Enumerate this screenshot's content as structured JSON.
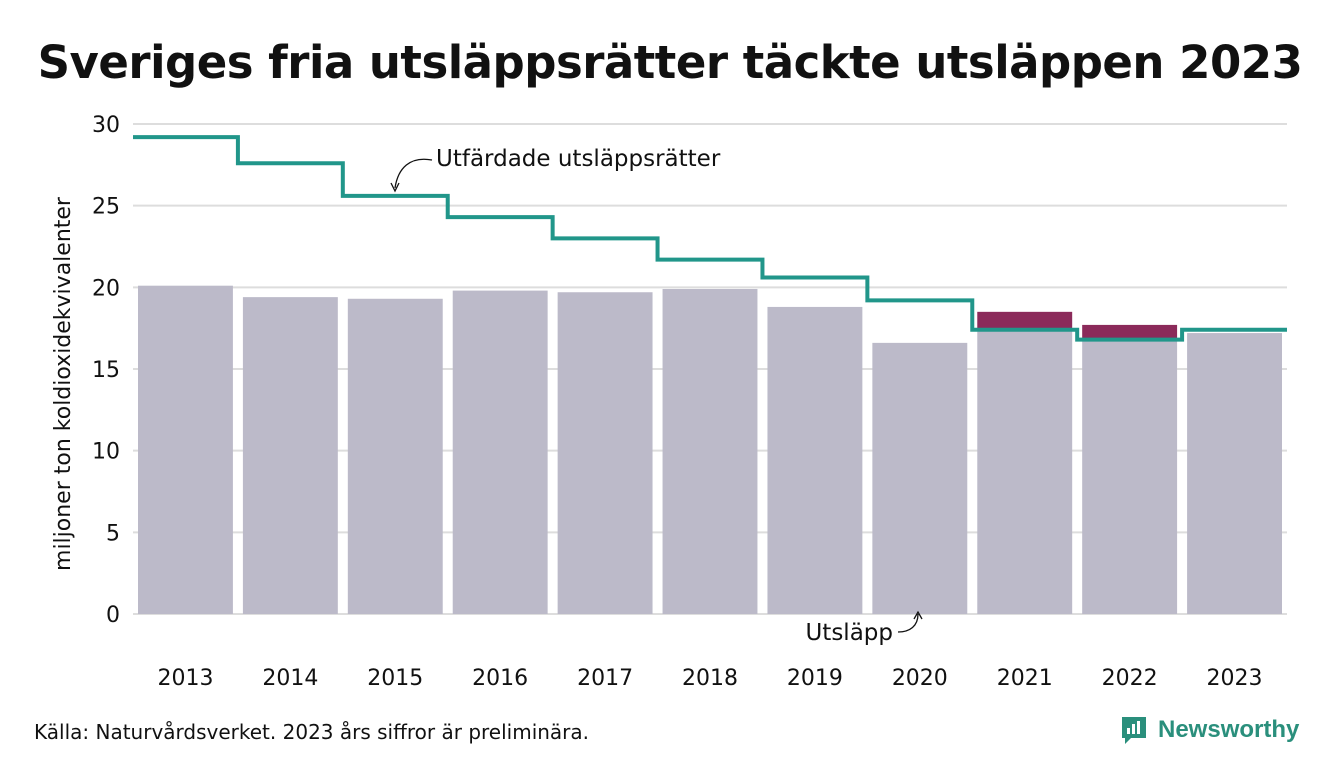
{
  "title": "Sveriges fria utsläppsrätter täckte utsläppen 2023",
  "source": "Källa: Naturvårdsverket. 2023 års siffror är preliminära.",
  "brand": {
    "name": "Newsworthy",
    "icon": "newsworthy-logo-icon"
  },
  "colors": {
    "bar": "#bcbac9",
    "excess": "#8b2a5a",
    "line": "#21968a",
    "grid": "#dddddd"
  },
  "chart_data": {
    "type": "bar",
    "title": "Sveriges fria utsläppsrätter täckte utsläppen 2023",
    "ylabel": "miljoner ton koldioxidekvivalenter",
    "xlabel": "",
    "ylim": [
      0,
      30
    ],
    "yticks": [
      0,
      5,
      10,
      15,
      20,
      25,
      30
    ],
    "categories": [
      "2013",
      "2014",
      "2015",
      "2016",
      "2017",
      "2018",
      "2019",
      "2020",
      "2021",
      "2022",
      "2023"
    ],
    "grid": true,
    "series": [
      {
        "name": "Utsläpp",
        "type": "bar",
        "values": [
          20.1,
          19.4,
          19.3,
          19.8,
          19.7,
          19.9,
          18.8,
          16.6,
          18.5,
          17.7,
          17.2
        ]
      },
      {
        "name": "Utfärdade utsläppsrätter",
        "type": "step",
        "values": [
          29.2,
          27.6,
          25.6,
          24.3,
          23.0,
          21.7,
          20.6,
          19.2,
          17.4,
          16.8,
          17.4
        ]
      }
    ],
    "annotations": [
      "Utfärdade utsläppsrätter",
      "Utsläpp"
    ]
  }
}
